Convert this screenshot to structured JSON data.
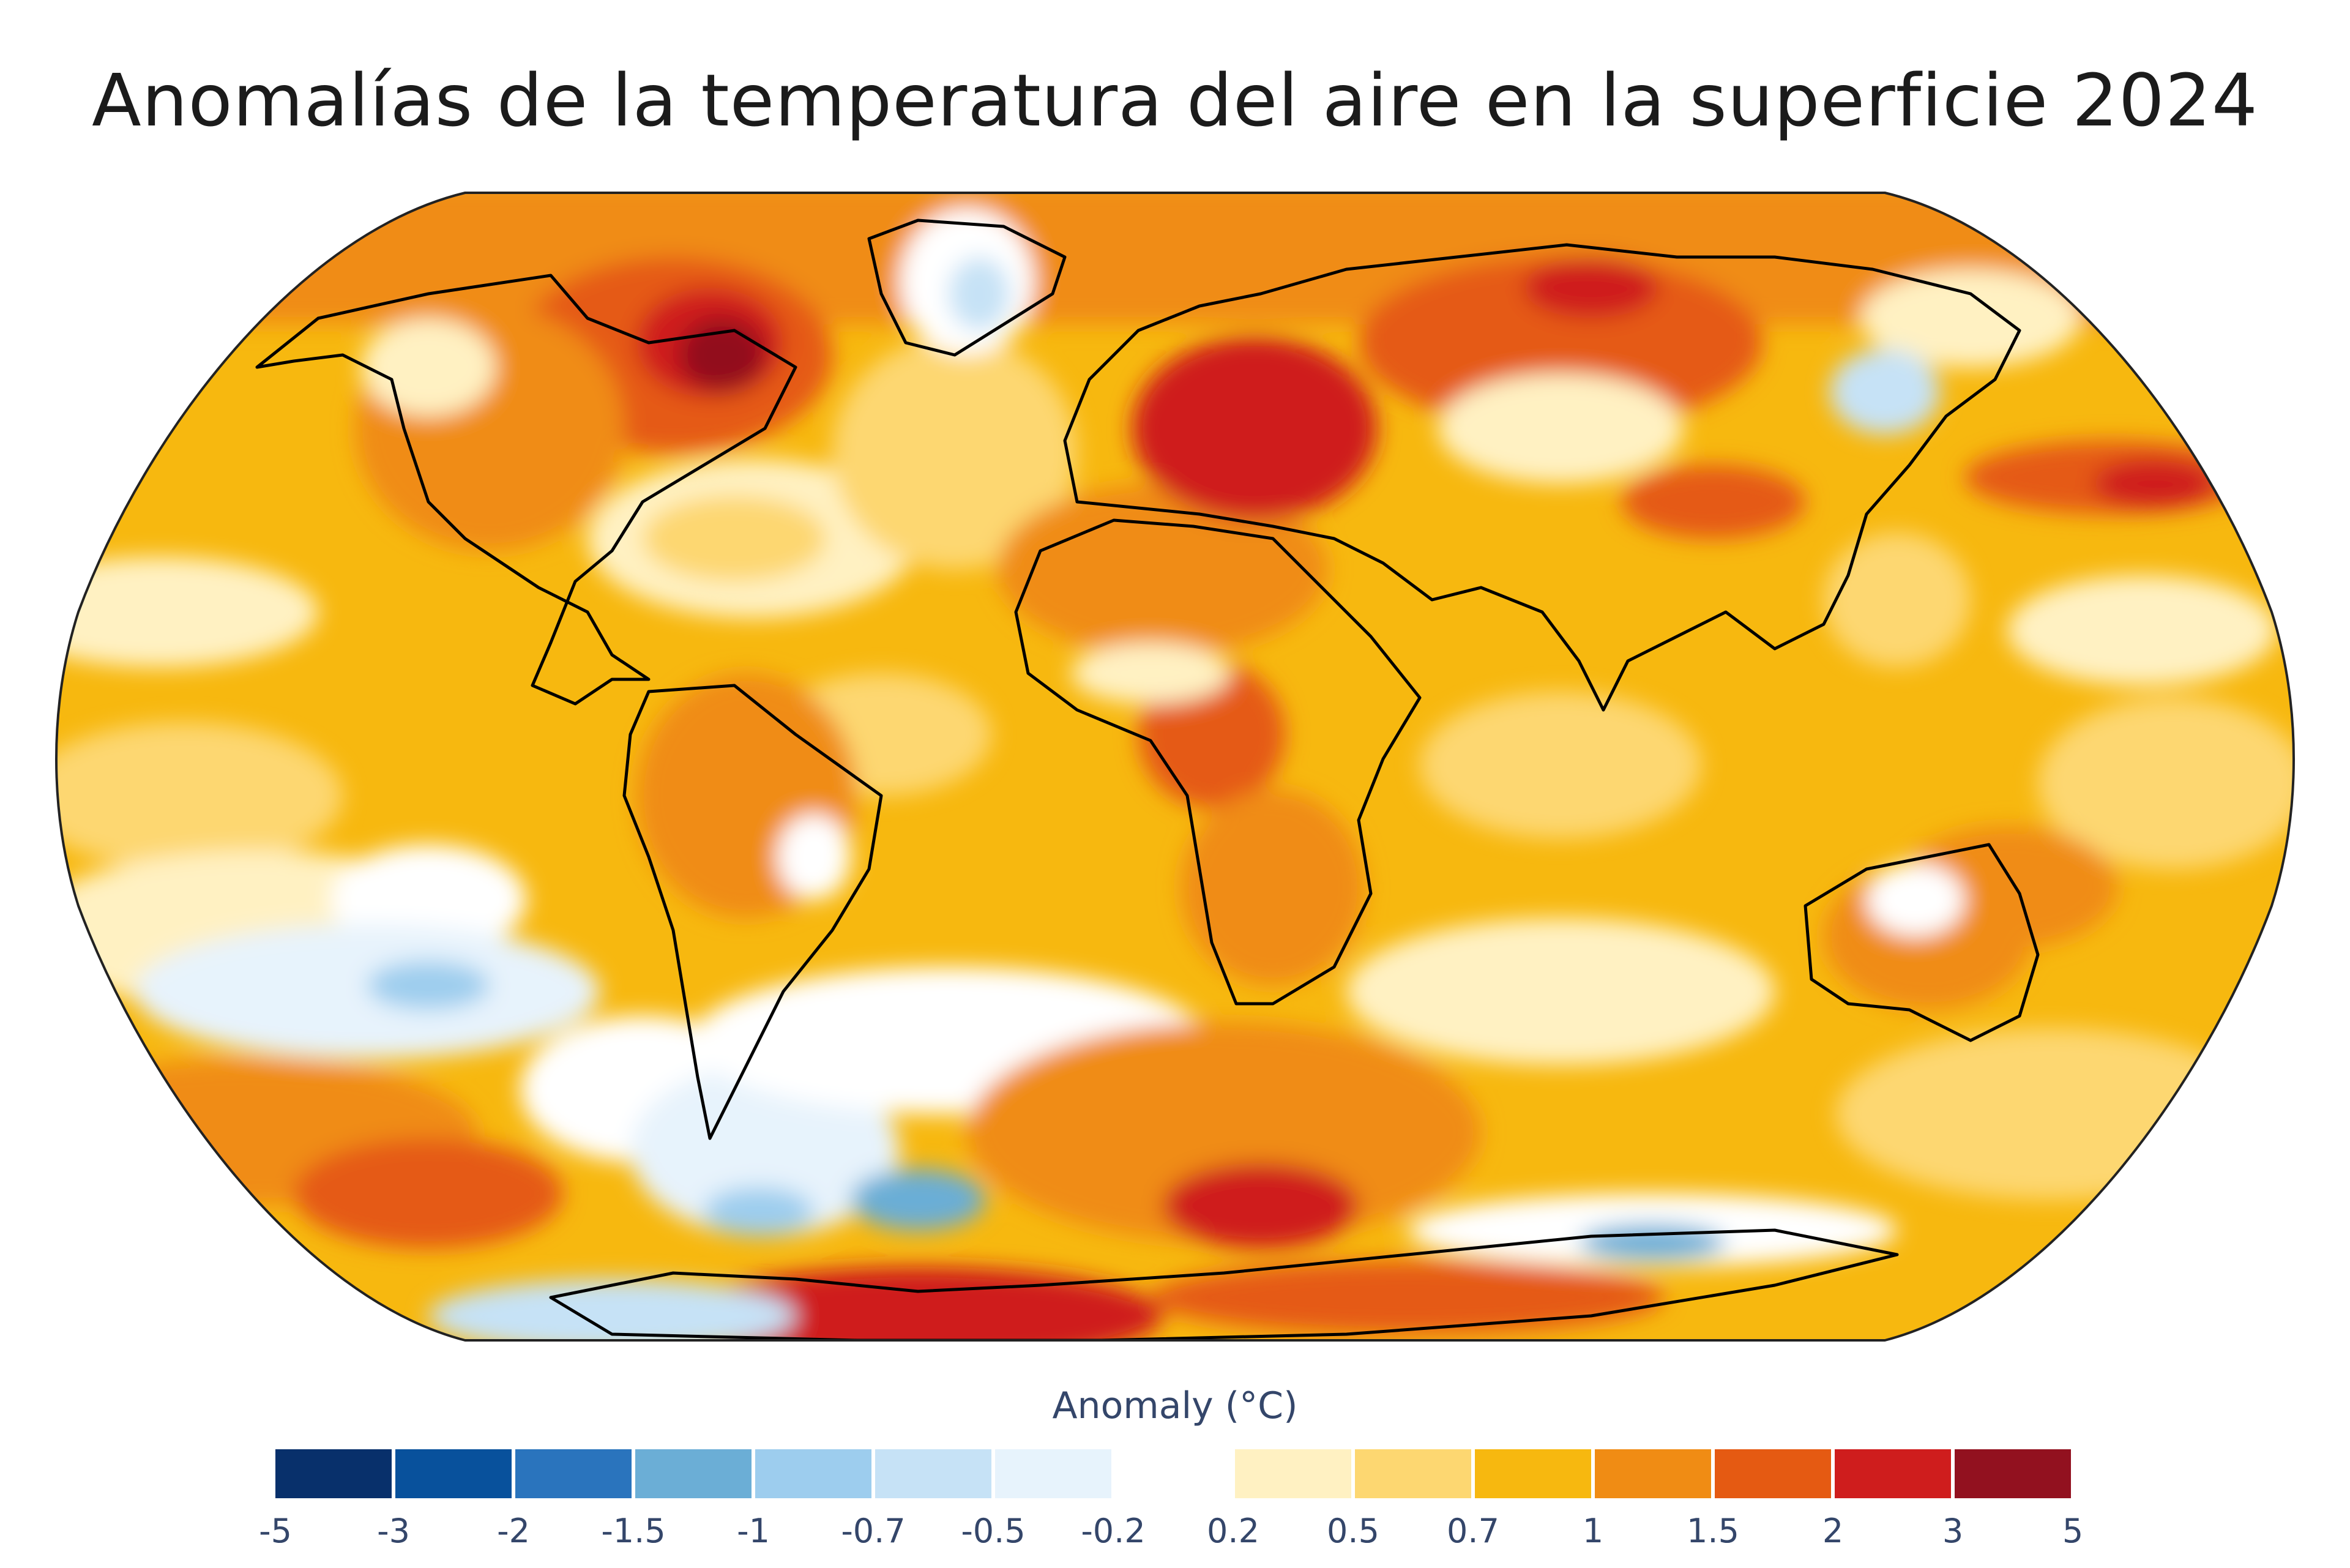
{
  "title": "Anomalías de la temperatura del aire en la superficie 2024",
  "map": {
    "projection": "Robinson",
    "variable": "surface air temperature anomaly",
    "ocean_color": "#f7b80f",
    "land_outline_color": "#000000"
  },
  "legend": {
    "title": "Anomaly (°C)",
    "bins": [
      {
        "from": "-5",
        "to": "-3",
        "color": "#08306b"
      },
      {
        "from": "-3",
        "to": "-2",
        "color": "#08519c"
      },
      {
        "from": "-2",
        "to": "-1.5",
        "color": "#2a74bd"
      },
      {
        "from": "-1.5",
        "to": "-1",
        "color": "#6baed6"
      },
      {
        "from": "-1",
        "to": "-0.7",
        "color": "#9dcdee"
      },
      {
        "from": "-0.7",
        "to": "-0.5",
        "color": "#c6e2f6"
      },
      {
        "from": "-0.5",
        "to": "-0.2",
        "color": "#e7f3fc"
      },
      {
        "from": "-0.2",
        "to": "0.2",
        "color": "#ffffff"
      },
      {
        "from": "0.2",
        "to": "0.5",
        "color": "#fff1c2"
      },
      {
        "from": "0.5",
        "to": "0.7",
        "color": "#fdd771"
      },
      {
        "from": "0.7",
        "to": "1",
        "color": "#f7b80f"
      },
      {
        "from": "1",
        "to": "1.5",
        "color": "#f08c14"
      },
      {
        "from": "1.5",
        "to": "2",
        "color": "#e55a12"
      },
      {
        "from": "2",
        "to": "3",
        "color": "#cf1d1d"
      },
      {
        "from": "3",
        "to": "5",
        "color": "#92111f"
      }
    ],
    "ticks": [
      "-5",
      "-3",
      "-2",
      "-1.5",
      "-1",
      "-0.7",
      "-0.5",
      "-0.2",
      "0.2",
      "0.5",
      "0.7",
      "1",
      "1.5",
      "2",
      "3",
      "5"
    ]
  }
}
